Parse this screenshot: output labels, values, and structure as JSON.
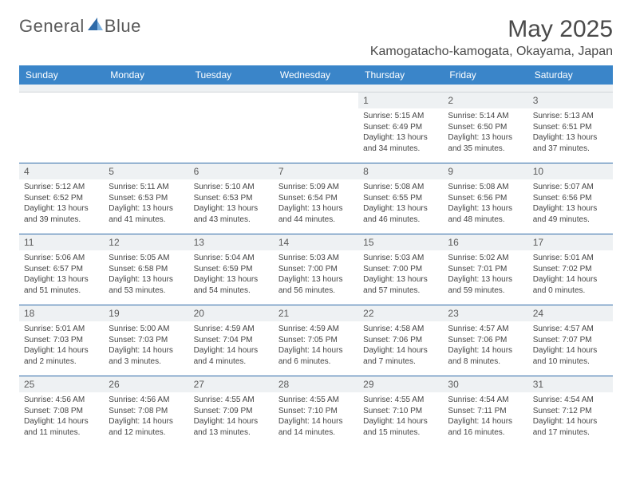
{
  "logo": {
    "text1": "General",
    "text2": "Blue"
  },
  "title": "May 2025",
  "location": "Kamogatacho-kamogata, Okayama, Japan",
  "colors": {
    "header_bg": "#3a85c9",
    "row_divider": "#2e6aa8",
    "daynum_bg": "#eef1f3",
    "text": "#444444"
  },
  "weekdays": [
    "Sunday",
    "Monday",
    "Tuesday",
    "Wednesday",
    "Thursday",
    "Friday",
    "Saturday"
  ],
  "weeks": [
    [
      null,
      null,
      null,
      null,
      {
        "d": "1",
        "sr": "5:15 AM",
        "ss": "6:49 PM",
        "dl1": "Daylight: 13 hours",
        "dl2": "and 34 minutes."
      },
      {
        "d": "2",
        "sr": "5:14 AM",
        "ss": "6:50 PM",
        "dl1": "Daylight: 13 hours",
        "dl2": "and 35 minutes."
      },
      {
        "d": "3",
        "sr": "5:13 AM",
        "ss": "6:51 PM",
        "dl1": "Daylight: 13 hours",
        "dl2": "and 37 minutes."
      }
    ],
    [
      {
        "d": "4",
        "sr": "5:12 AM",
        "ss": "6:52 PM",
        "dl1": "Daylight: 13 hours",
        "dl2": "and 39 minutes."
      },
      {
        "d": "5",
        "sr": "5:11 AM",
        "ss": "6:53 PM",
        "dl1": "Daylight: 13 hours",
        "dl2": "and 41 minutes."
      },
      {
        "d": "6",
        "sr": "5:10 AM",
        "ss": "6:53 PM",
        "dl1": "Daylight: 13 hours",
        "dl2": "and 43 minutes."
      },
      {
        "d": "7",
        "sr": "5:09 AM",
        "ss": "6:54 PM",
        "dl1": "Daylight: 13 hours",
        "dl2": "and 44 minutes."
      },
      {
        "d": "8",
        "sr": "5:08 AM",
        "ss": "6:55 PM",
        "dl1": "Daylight: 13 hours",
        "dl2": "and 46 minutes."
      },
      {
        "d": "9",
        "sr": "5:08 AM",
        "ss": "6:56 PM",
        "dl1": "Daylight: 13 hours",
        "dl2": "and 48 minutes."
      },
      {
        "d": "10",
        "sr": "5:07 AM",
        "ss": "6:56 PM",
        "dl1": "Daylight: 13 hours",
        "dl2": "and 49 minutes."
      }
    ],
    [
      {
        "d": "11",
        "sr": "5:06 AM",
        "ss": "6:57 PM",
        "dl1": "Daylight: 13 hours",
        "dl2": "and 51 minutes."
      },
      {
        "d": "12",
        "sr": "5:05 AM",
        "ss": "6:58 PM",
        "dl1": "Daylight: 13 hours",
        "dl2": "and 53 minutes."
      },
      {
        "d": "13",
        "sr": "5:04 AM",
        "ss": "6:59 PM",
        "dl1": "Daylight: 13 hours",
        "dl2": "and 54 minutes."
      },
      {
        "d": "14",
        "sr": "5:03 AM",
        "ss": "7:00 PM",
        "dl1": "Daylight: 13 hours",
        "dl2": "and 56 minutes."
      },
      {
        "d": "15",
        "sr": "5:03 AM",
        "ss": "7:00 PM",
        "dl1": "Daylight: 13 hours",
        "dl2": "and 57 minutes."
      },
      {
        "d": "16",
        "sr": "5:02 AM",
        "ss": "7:01 PM",
        "dl1": "Daylight: 13 hours",
        "dl2": "and 59 minutes."
      },
      {
        "d": "17",
        "sr": "5:01 AM",
        "ss": "7:02 PM",
        "dl1": "Daylight: 14 hours",
        "dl2": "and 0 minutes."
      }
    ],
    [
      {
        "d": "18",
        "sr": "5:01 AM",
        "ss": "7:03 PM",
        "dl1": "Daylight: 14 hours",
        "dl2": "and 2 minutes."
      },
      {
        "d": "19",
        "sr": "5:00 AM",
        "ss": "7:03 PM",
        "dl1": "Daylight: 14 hours",
        "dl2": "and 3 minutes."
      },
      {
        "d": "20",
        "sr": "4:59 AM",
        "ss": "7:04 PM",
        "dl1": "Daylight: 14 hours",
        "dl2": "and 4 minutes."
      },
      {
        "d": "21",
        "sr": "4:59 AM",
        "ss": "7:05 PM",
        "dl1": "Daylight: 14 hours",
        "dl2": "and 6 minutes."
      },
      {
        "d": "22",
        "sr": "4:58 AM",
        "ss": "7:06 PM",
        "dl1": "Daylight: 14 hours",
        "dl2": "and 7 minutes."
      },
      {
        "d": "23",
        "sr": "4:57 AM",
        "ss": "7:06 PM",
        "dl1": "Daylight: 14 hours",
        "dl2": "and 8 minutes."
      },
      {
        "d": "24",
        "sr": "4:57 AM",
        "ss": "7:07 PM",
        "dl1": "Daylight: 14 hours",
        "dl2": "and 10 minutes."
      }
    ],
    [
      {
        "d": "25",
        "sr": "4:56 AM",
        "ss": "7:08 PM",
        "dl1": "Daylight: 14 hours",
        "dl2": "and 11 minutes."
      },
      {
        "d": "26",
        "sr": "4:56 AM",
        "ss": "7:08 PM",
        "dl1": "Daylight: 14 hours",
        "dl2": "and 12 minutes."
      },
      {
        "d": "27",
        "sr": "4:55 AM",
        "ss": "7:09 PM",
        "dl1": "Daylight: 14 hours",
        "dl2": "and 13 minutes."
      },
      {
        "d": "28",
        "sr": "4:55 AM",
        "ss": "7:10 PM",
        "dl1": "Daylight: 14 hours",
        "dl2": "and 14 minutes."
      },
      {
        "d": "29",
        "sr": "4:55 AM",
        "ss": "7:10 PM",
        "dl1": "Daylight: 14 hours",
        "dl2": "and 15 minutes."
      },
      {
        "d": "30",
        "sr": "4:54 AM",
        "ss": "7:11 PM",
        "dl1": "Daylight: 14 hours",
        "dl2": "and 16 minutes."
      },
      {
        "d": "31",
        "sr": "4:54 AM",
        "ss": "7:12 PM",
        "dl1": "Daylight: 14 hours",
        "dl2": "and 17 minutes."
      }
    ]
  ],
  "labels": {
    "sunrise": "Sunrise:",
    "sunset": "Sunset:"
  }
}
